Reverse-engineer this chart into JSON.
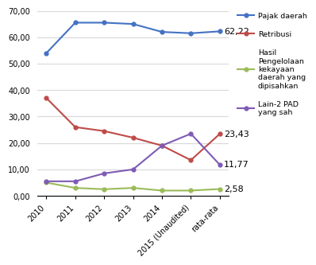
{
  "x_labels": [
    "2010",
    "2011",
    "2012",
    "2013",
    "2014",
    "2015 (Unaudited)",
    "rata-rata"
  ],
  "pajak_daerah": [
    54.0,
    65.5,
    65.5,
    65.0,
    62.0,
    61.5,
    62.22
  ],
  "retribusi": [
    37.0,
    26.0,
    24.5,
    22.0,
    19.0,
    13.5,
    23.43
  ],
  "hasil_pengelolaan": [
    5.0,
    3.0,
    2.5,
    3.0,
    2.0,
    2.0,
    2.58
  ],
  "lain_lain": [
    5.5,
    5.5,
    8.5,
    10.0,
    19.0,
    23.5,
    11.77
  ],
  "pajak_color": "#4472C4",
  "retribusi_color": "#BE4B48",
  "hasil_color": "#9BBB59",
  "lain_color": "#7E5BB5",
  "annotations": [
    {
      "text": "62,22",
      "series": "pajak_daerah"
    },
    {
      "text": "23,43",
      "series": "retribusi"
    },
    {
      "text": "11,77",
      "series": "lain_lain"
    },
    {
      "text": "2,58",
      "series": "hasil_pengelolaan"
    }
  ],
  "ylim": [
    0,
    70
  ],
  "yticks": [
    0,
    10,
    20,
    30,
    40,
    50,
    60,
    70
  ],
  "ytick_labels": [
    "0,00",
    "10,00",
    "20,00",
    "30,00",
    "40,00",
    "50,00",
    "60,00",
    "70,00"
  ],
  "legend_labels": [
    "Pajak daerah",
    "Retribusi",
    "Hasil\nPengelolaan\nkekayaan\ndaerah yang\ndipisahkan",
    "Lain-2 PAD\nyang sah"
  ],
  "bg_color": "#FFFFFF",
  "grid_color": "#D9D9D9",
  "ann_fontsize": 8.0,
  "tick_fontsize": 7.0,
  "legend_fontsize": 6.8
}
